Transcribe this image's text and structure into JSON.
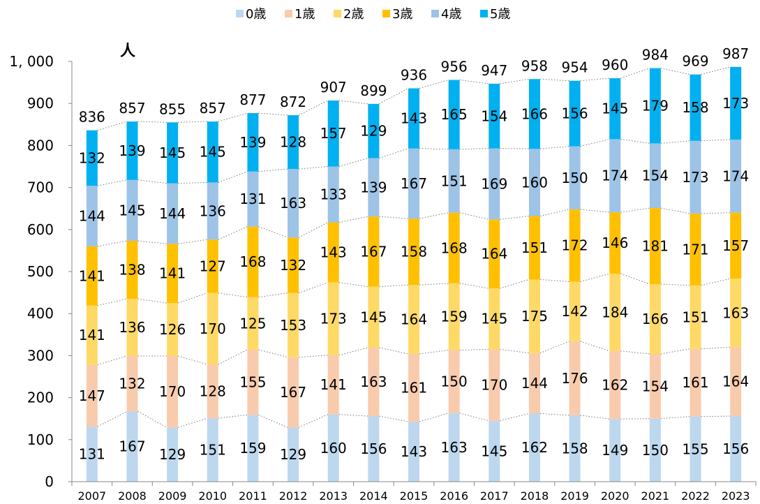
{
  "chart_data": {
    "type": "bar",
    "stacked": true,
    "ylabel": "人",
    "ylim": [
      0,
      1000
    ],
    "yticks": [
      0,
      100,
      200,
      300,
      400,
      500,
      600,
      700,
      800,
      900,
      1000
    ],
    "ytick_labels": [
      "0",
      "100",
      "200",
      "300",
      "400",
      "500",
      "600",
      "700",
      "800",
      "900",
      "1, 000"
    ],
    "legend_position": "top",
    "grid": false,
    "categories": [
      "2007",
      "2008",
      "2009",
      "2010",
      "2011",
      "2012",
      "2013",
      "2014",
      "2015",
      "2016",
      "2017",
      "2018",
      "2019",
      "2020",
      "2021",
      "2022",
      "2023"
    ],
    "series": [
      {
        "name": "0歳",
        "color": "#BDD7EE",
        "values": [
          131,
          167,
          129,
          151,
          159,
          129,
          160,
          156,
          143,
          163,
          145,
          162,
          158,
          149,
          150,
          155,
          156
        ]
      },
      {
        "name": "1歳",
        "color": "#F8CBAD",
        "values": [
          147,
          132,
          170,
          128,
          155,
          167,
          141,
          163,
          161,
          150,
          170,
          144,
          176,
          162,
          154,
          161,
          164
        ]
      },
      {
        "name": "2歳",
        "color": "#FFD966",
        "values": [
          141,
          136,
          126,
          170,
          125,
          153,
          173,
          145,
          164,
          159,
          145,
          175,
          142,
          184,
          166,
          151,
          163
        ]
      },
      {
        "name": "3歳",
        "color": "#FFC000",
        "values": [
          141,
          138,
          141,
          127,
          168,
          132,
          143,
          167,
          158,
          168,
          164,
          151,
          172,
          146,
          181,
          171,
          157
        ]
      },
      {
        "name": "4歳",
        "color": "#9DC3E6",
        "values": [
          144,
          145,
          144,
          136,
          131,
          163,
          133,
          139,
          167,
          151,
          169,
          160,
          150,
          174,
          154,
          173,
          174
        ]
      },
      {
        "name": "5歳",
        "color": "#00B0F0",
        "values": [
          132,
          139,
          145,
          145,
          139,
          128,
          157,
          129,
          143,
          165,
          154,
          166,
          156,
          145,
          179,
          158,
          173
        ]
      }
    ],
    "totals": [
      836,
      857,
      855,
      857,
      877,
      872,
      907,
      899,
      936,
      956,
      947,
      958,
      954,
      960,
      984,
      969,
      987
    ]
  }
}
